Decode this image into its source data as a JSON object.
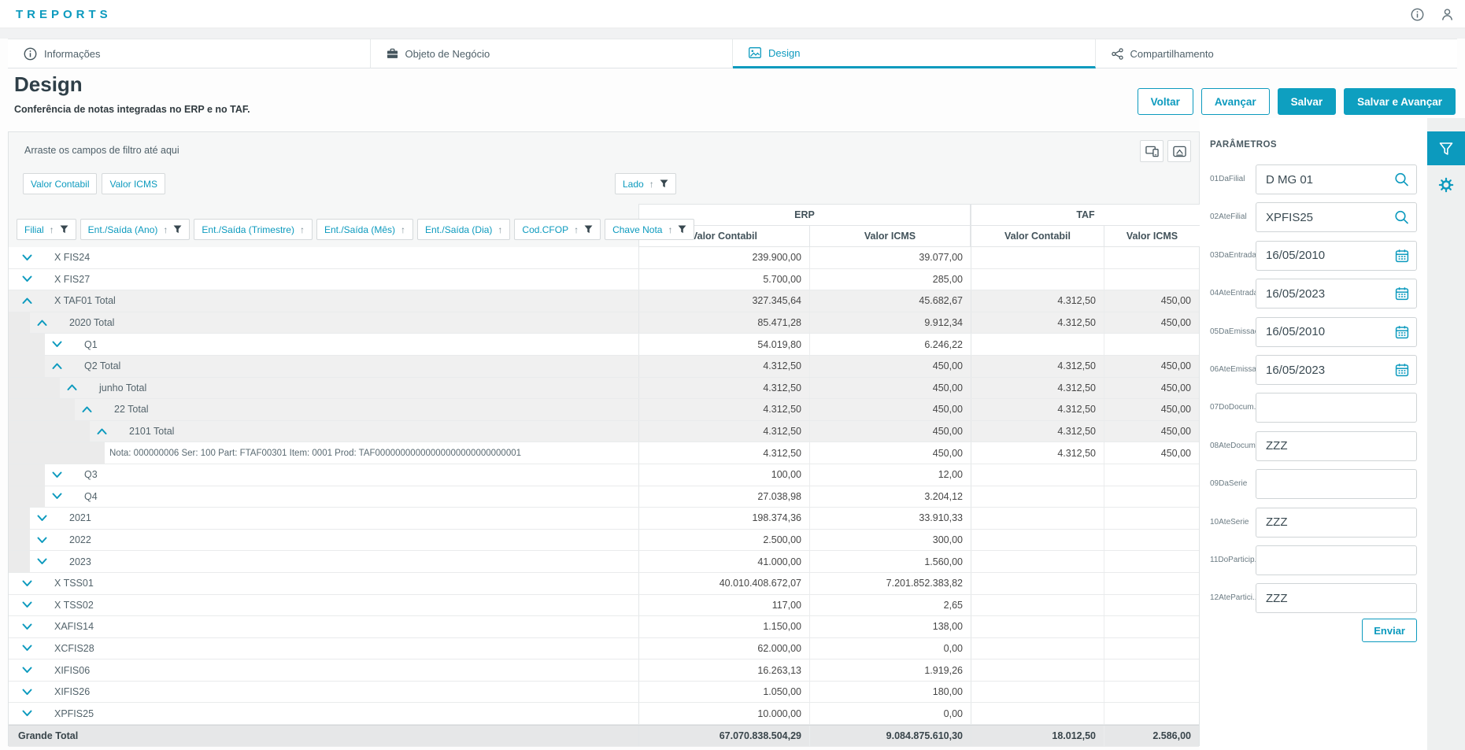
{
  "app": {
    "title": "TREPORTS"
  },
  "tabs": [
    {
      "label": "Informações",
      "icon": "info",
      "active": false
    },
    {
      "label": "Objeto de Negócio",
      "icon": "briefcase",
      "active": false
    },
    {
      "label": "Design",
      "icon": "image",
      "active": true
    },
    {
      "label": "Compartilhamento",
      "icon": "share",
      "active": false
    }
  ],
  "page": {
    "title": "Design",
    "subtitle": "Conferência de notas integradas no ERP e no TAF."
  },
  "actions": {
    "back": "Voltar",
    "next": "Avançar",
    "save": "Salvar",
    "save_next": "Salvar e Avançar"
  },
  "pivot": {
    "drop_hint": "Arraste os campos de filtro até aqui",
    "measure_chips": [
      {
        "label": "Valor Contabil"
      },
      {
        "label": "Valor ICMS"
      }
    ],
    "column_chip": {
      "label": "Lado",
      "sort": true,
      "filter": true
    },
    "row_chips": [
      {
        "label": "Filial",
        "filter": true
      },
      {
        "label": "Ent./Saída (Ano)",
        "filter": true
      },
      {
        "label": "Ent./Saída (Trimestre)",
        "filter": false
      },
      {
        "label": "Ent./Saída (Mês)",
        "filter": false
      },
      {
        "label": "Ent./Saída (Dia)",
        "filter": false
      },
      {
        "label": "Cod.CFOP",
        "filter": true
      },
      {
        "label": "Chave Nota",
        "filter": true
      }
    ],
    "column_groups": {
      "0": "ERP",
      "1": "TAF"
    },
    "value_headers": {
      "0": "Valor Contabil",
      "1": "Valor ICMS",
      "2": "Valor Contabil",
      "3": "Valor ICMS"
    },
    "rows": [
      {
        "label": "X FIS24",
        "level": 0,
        "chevron": "down",
        "total": false,
        "values": [
          "239.900,00",
          "39.077,00",
          "",
          ""
        ]
      },
      {
        "label": "X FIS27",
        "level": 0,
        "chevron": "down",
        "total": false,
        "values": [
          "5.700,00",
          "285,00",
          "",
          ""
        ]
      },
      {
        "label": "X TAF01 Total",
        "level": 0,
        "chevron": "up",
        "total": true,
        "values": [
          "327.345,64",
          "45.682,67",
          "4.312,50",
          "450,00"
        ]
      },
      {
        "label": "2020 Total",
        "level": 1,
        "chevron": "up",
        "total": true,
        "values": [
          "85.471,28",
          "9.912,34",
          "4.312,50",
          "450,00"
        ]
      },
      {
        "label": "Q1",
        "level": 2,
        "chevron": "down",
        "total": false,
        "values": [
          "54.019,80",
          "6.246,22",
          "",
          ""
        ]
      },
      {
        "label": "Q2 Total",
        "level": 2,
        "chevron": "up",
        "total": true,
        "values": [
          "4.312,50",
          "450,00",
          "4.312,50",
          "450,00"
        ]
      },
      {
        "label": "junho Total",
        "level": 3,
        "chevron": "up",
        "total": true,
        "values": [
          "4.312,50",
          "450,00",
          "4.312,50",
          "450,00"
        ]
      },
      {
        "label": "22 Total",
        "level": 4,
        "chevron": "up",
        "total": true,
        "values": [
          "4.312,50",
          "450,00",
          "4.312,50",
          "450,00"
        ]
      },
      {
        "label": "2101 Total",
        "level": 5,
        "chevron": "up",
        "total": true,
        "values": [
          "4.312,50",
          "450,00",
          "4.312,50",
          "450,00"
        ]
      },
      {
        "label": "Nota: 000000006 Ser: 100 Part: FTAF00301 Item: 0001 Prod: TAF00000000000000000000000000001",
        "level": 6,
        "chevron": "none",
        "total": false,
        "note": true,
        "values": [
          "4.312,50",
          "450,00",
          "4.312,50",
          "450,00"
        ]
      },
      {
        "label": "Q3",
        "level": 2,
        "chevron": "down",
        "total": false,
        "values": [
          "100,00",
          "12,00",
          "",
          ""
        ]
      },
      {
        "label": "Q4",
        "level": 2,
        "chevron": "down",
        "total": false,
        "values": [
          "27.038,98",
          "3.204,12",
          "",
          ""
        ]
      },
      {
        "label": "2021",
        "level": 1,
        "chevron": "down",
        "total": false,
        "values": [
          "198.374,36",
          "33.910,33",
          "",
          ""
        ]
      },
      {
        "label": "2022",
        "level": 1,
        "chevron": "down",
        "total": false,
        "values": [
          "2.500,00",
          "300,00",
          "",
          ""
        ]
      },
      {
        "label": "2023",
        "level": 1,
        "chevron": "down",
        "total": false,
        "values": [
          "41.000,00",
          "1.560,00",
          "",
          ""
        ]
      },
      {
        "label": "X TSS01",
        "level": 0,
        "chevron": "down",
        "total": false,
        "values": [
          "40.010.408.672,07",
          "7.201.852.383,82",
          "",
          ""
        ]
      },
      {
        "label": "X TSS02",
        "level": 0,
        "chevron": "down",
        "total": false,
        "values": [
          "117,00",
          "2,65",
          "",
          ""
        ]
      },
      {
        "label": "XAFIS14",
        "level": 0,
        "chevron": "down",
        "total": false,
        "values": [
          "1.150,00",
          "138,00",
          "",
          ""
        ]
      },
      {
        "label": "XCFIS28",
        "level": 0,
        "chevron": "down",
        "total": false,
        "values": [
          "62.000,00",
          "0,00",
          "",
          ""
        ]
      },
      {
        "label": "XIFIS06",
        "level": 0,
        "chevron": "down",
        "total": false,
        "values": [
          "16.263,13",
          "1.919,26",
          "",
          ""
        ]
      },
      {
        "label": "XIFIS26",
        "level": 0,
        "chevron": "down",
        "total": false,
        "values": [
          "1.050,00",
          "180,00",
          "",
          ""
        ]
      },
      {
        "label": "XPFIS25",
        "level": 0,
        "chevron": "down",
        "total": false,
        "values": [
          "10.000,00",
          "0,00",
          "",
          ""
        ]
      }
    ],
    "grand_total": {
      "label": "Grande Total",
      "values": [
        "67.070.838.504,29",
        "9.084.875.610,30",
        "18.012,50",
        "2.586,00"
      ]
    }
  },
  "parameters": {
    "title": "PARÂMETROS",
    "fields": [
      {
        "label": "01DaFilial",
        "value": "D MG 01",
        "icon": "search"
      },
      {
        "label": "02AteFilial",
        "value": "XPFIS25",
        "icon": "search"
      },
      {
        "label": "03DaEntrada",
        "value": "16/05/2010",
        "icon": "calendar"
      },
      {
        "label": "04AteEntrada",
        "value": "16/05/2023",
        "icon": "calendar"
      },
      {
        "label": "05DaEmissao",
        "value": "16/05/2010",
        "icon": "calendar"
      },
      {
        "label": "06AteEmissao",
        "value": "16/05/2023",
        "icon": "calendar"
      },
      {
        "label": "07DoDocum...",
        "value": "",
        "icon": ""
      },
      {
        "label": "08AteDocum...",
        "value": "ZZZ",
        "icon": ""
      },
      {
        "label": "09DaSerie",
        "value": "",
        "icon": ""
      },
      {
        "label": "10AteSerie",
        "value": "ZZZ",
        "icon": ""
      },
      {
        "label": "11DoParticip...",
        "value": "",
        "icon": ""
      },
      {
        "label": "12AtePartici...",
        "value": "ZZZ",
        "icon": ""
      }
    ],
    "submit": "Enviar"
  },
  "colors": {
    "accent": "#0c9abe",
    "funnel": "#37474f",
    "total_row": "#f0f0f0",
    "grand_row": "#e6e7e8"
  }
}
